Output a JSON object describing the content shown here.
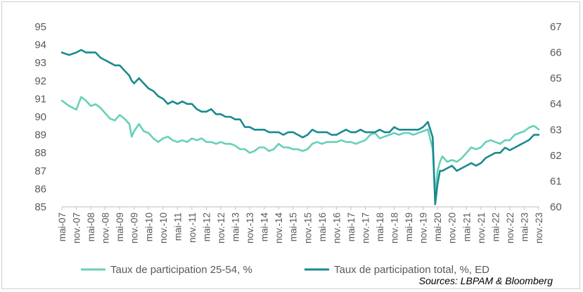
{
  "chart_data": {
    "type": "line",
    "title": "",
    "xlabel": "",
    "ylabel_left": "",
    "ylabel_right": "",
    "y_left_range": [
      85,
      95
    ],
    "y_left_ticks": [
      85,
      86,
      87,
      88,
      89,
      90,
      91,
      92,
      93,
      94,
      95
    ],
    "y_right_range": [
      60,
      67
    ],
    "y_right_ticks": [
      60,
      61,
      62,
      63,
      64,
      65,
      66,
      67
    ],
    "x_range": [
      "2007-05",
      "2023-11"
    ],
    "x_tick_labels": [
      "mai-07",
      "nov.-07",
      "mai-08",
      "nov.-08",
      "mai-09",
      "nov.-09",
      "mai-10",
      "nov.-10",
      "mai-11",
      "nov.-11",
      "mai-12",
      "nov.-12",
      "mai-13",
      "nov.-13",
      "mai-14",
      "nov.-14",
      "mai-15",
      "nov.-15",
      "mai-16",
      "nov.-16",
      "mai-17",
      "nov.-17",
      "mai-18",
      "nov.-18",
      "mai-19",
      "nov.-19",
      "mai-20",
      "nov.-20",
      "mai-21",
      "nov.-21",
      "mai-22",
      "nov.-22",
      "mai-23",
      "nov.-23"
    ],
    "grid": false,
    "legend_position": "bottom",
    "series": [
      {
        "name": "Taux de participation 25-54, %",
        "axis": "left",
        "color": "#66d1b8",
        "x": [
          "2007-05",
          "2007-08",
          "2007-11",
          "2008-01",
          "2008-03",
          "2008-05",
          "2008-07",
          "2008-09",
          "2008-11",
          "2009-01",
          "2009-03",
          "2009-05",
          "2009-07",
          "2009-09",
          "2009-10",
          "2009-11",
          "2010-01",
          "2010-03",
          "2010-05",
          "2010-07",
          "2010-09",
          "2010-11",
          "2011-01",
          "2011-03",
          "2011-05",
          "2011-07",
          "2011-09",
          "2011-11",
          "2012-01",
          "2012-03",
          "2012-05",
          "2012-07",
          "2012-09",
          "2012-11",
          "2013-01",
          "2013-03",
          "2013-05",
          "2013-07",
          "2013-09",
          "2013-11",
          "2014-01",
          "2014-03",
          "2014-05",
          "2014-07",
          "2014-09",
          "2014-11",
          "2015-01",
          "2015-03",
          "2015-05",
          "2015-07",
          "2015-09",
          "2015-11",
          "2016-01",
          "2016-03",
          "2016-05",
          "2016-07",
          "2016-09",
          "2016-11",
          "2017-01",
          "2017-03",
          "2017-05",
          "2017-07",
          "2017-09",
          "2017-11",
          "2018-01",
          "2018-03",
          "2018-05",
          "2018-07",
          "2018-09",
          "2018-11",
          "2019-01",
          "2019-03",
          "2019-05",
          "2019-07",
          "2019-09",
          "2019-11",
          "2020-01",
          "2020-03",
          "2020-04",
          "2020-05",
          "2020-06",
          "2020-07",
          "2020-09",
          "2020-11",
          "2021-01",
          "2021-03",
          "2021-05",
          "2021-07",
          "2021-09",
          "2021-11",
          "2022-01",
          "2022-03",
          "2022-05",
          "2022-07",
          "2022-09",
          "2022-11",
          "2023-01",
          "2023-03",
          "2023-05",
          "2023-07",
          "2023-09",
          "2023-11"
        ],
        "values": [
          90.9,
          90.6,
          90.4,
          91.1,
          90.9,
          90.6,
          90.7,
          90.5,
          90.2,
          89.9,
          89.8,
          90.1,
          89.9,
          89.6,
          88.9,
          89.2,
          89.6,
          89.2,
          89.1,
          88.8,
          88.6,
          88.8,
          88.9,
          88.7,
          88.6,
          88.7,
          88.6,
          88.8,
          88.7,
          88.8,
          88.6,
          88.6,
          88.5,
          88.6,
          88.5,
          88.5,
          88.4,
          88.2,
          88.2,
          88.0,
          88.1,
          88.3,
          88.3,
          88.1,
          88.2,
          88.5,
          88.3,
          88.3,
          88.2,
          88.2,
          88.1,
          88.2,
          88.5,
          88.6,
          88.5,
          88.6,
          88.6,
          88.6,
          88.7,
          88.6,
          88.6,
          88.5,
          88.6,
          88.7,
          89.0,
          89.1,
          88.8,
          88.9,
          89.0,
          89.1,
          89.0,
          89.1,
          89.1,
          89.0,
          89.1,
          89.2,
          89.3,
          88.2,
          85.6,
          87.0,
          87.5,
          87.8,
          87.5,
          87.6,
          87.5,
          87.7,
          88.0,
          88.3,
          88.2,
          88.3,
          88.6,
          88.7,
          88.6,
          88.5,
          88.7,
          88.7,
          89.0,
          89.1,
          89.2,
          89.4,
          89.5,
          89.3
        ]
      },
      {
        "name": "Taux de participation total, %, ED",
        "axis": "right",
        "color": "#1a8a8f",
        "x": [
          "2007-05",
          "2007-08",
          "2007-11",
          "2008-01",
          "2008-03",
          "2008-05",
          "2008-07",
          "2008-09",
          "2008-11",
          "2009-01",
          "2009-03",
          "2009-05",
          "2009-07",
          "2009-09",
          "2009-10",
          "2009-11",
          "2010-01",
          "2010-03",
          "2010-05",
          "2010-07",
          "2010-09",
          "2010-11",
          "2011-01",
          "2011-03",
          "2011-05",
          "2011-07",
          "2011-09",
          "2011-11",
          "2012-01",
          "2012-03",
          "2012-05",
          "2012-07",
          "2012-09",
          "2012-11",
          "2013-01",
          "2013-03",
          "2013-05",
          "2013-07",
          "2013-09",
          "2013-11",
          "2014-01",
          "2014-03",
          "2014-05",
          "2014-07",
          "2014-09",
          "2014-11",
          "2015-01",
          "2015-03",
          "2015-05",
          "2015-07",
          "2015-09",
          "2015-11",
          "2016-01",
          "2016-03",
          "2016-05",
          "2016-07",
          "2016-09",
          "2016-11",
          "2017-01",
          "2017-03",
          "2017-05",
          "2017-07",
          "2017-09",
          "2017-11",
          "2018-01",
          "2018-03",
          "2018-05",
          "2018-07",
          "2018-09",
          "2018-11",
          "2019-01",
          "2019-03",
          "2019-05",
          "2019-07",
          "2019-09",
          "2019-11",
          "2020-01",
          "2020-03",
          "2020-04",
          "2020-05",
          "2020-06",
          "2020-07",
          "2020-09",
          "2020-11",
          "2021-01",
          "2021-03",
          "2021-05",
          "2021-07",
          "2021-09",
          "2021-11",
          "2022-01",
          "2022-03",
          "2022-05",
          "2022-07",
          "2022-09",
          "2022-11",
          "2023-01",
          "2023-03",
          "2023-05",
          "2023-07",
          "2023-09",
          "2023-11"
        ],
        "values": [
          66.0,
          65.9,
          66.0,
          66.1,
          66.0,
          66.0,
          66.0,
          65.8,
          65.7,
          65.6,
          65.5,
          65.5,
          65.3,
          65.1,
          64.9,
          64.8,
          65.0,
          64.8,
          64.6,
          64.5,
          64.3,
          64.2,
          64.0,
          64.1,
          64.0,
          64.1,
          64.0,
          64.0,
          63.8,
          63.7,
          63.7,
          63.8,
          63.6,
          63.6,
          63.5,
          63.5,
          63.4,
          63.4,
          63.1,
          63.1,
          63.0,
          63.0,
          63.0,
          62.9,
          62.9,
          62.9,
          62.8,
          62.9,
          62.9,
          62.8,
          62.7,
          62.8,
          63.0,
          62.9,
          62.9,
          62.9,
          62.8,
          62.8,
          62.9,
          63.0,
          62.9,
          62.9,
          63.0,
          62.9,
          62.9,
          62.9,
          63.0,
          62.9,
          62.9,
          63.1,
          63.0,
          63.0,
          63.0,
          63.0,
          63.0,
          63.1,
          63.3,
          62.7,
          60.1,
          60.9,
          61.4,
          61.4,
          61.5,
          61.6,
          61.4,
          61.5,
          61.6,
          61.7,
          61.6,
          61.7,
          61.9,
          62.0,
          62.1,
          62.1,
          62.3,
          62.2,
          62.3,
          62.4,
          62.5,
          62.6,
          62.8,
          62.8
        ]
      }
    ],
    "source": "Sources: LBPAM & Bloomberg"
  }
}
